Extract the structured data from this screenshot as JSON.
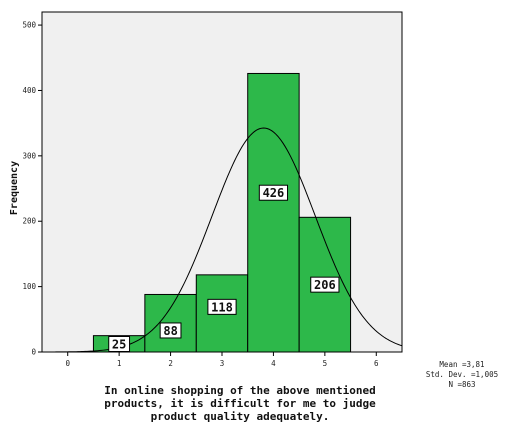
{
  "chart_data": {
    "type": "bar",
    "variant": "histogram",
    "categories": [
      "1",
      "2",
      "3",
      "4",
      "5"
    ],
    "values": [
      25,
      88,
      118,
      426,
      206
    ],
    "ylabel": "Frequency",
    "xlabel_lines": [
      "In online shopping of the above mentioned",
      "products, it is difficult for me to judge",
      "product quality adequately."
    ],
    "xlim": [
      -0.5,
      6.5
    ],
    "ylim": [
      0,
      520
    ],
    "x_ticks": [
      "0",
      "1",
      "2",
      "3",
      "4",
      "5",
      "6"
    ],
    "y_ticks": [
      "0",
      "100",
      "200",
      "300",
      "400",
      "500"
    ],
    "bar_labels": [
      "25",
      "88",
      "118",
      "426",
      "206"
    ],
    "normal_curve": {
      "mean": 3.81,
      "std": 1.005,
      "n": 863
    },
    "stats_lines": [
      "Mean =3,81",
      "Std. Dev. =1,005",
      "N =863"
    ],
    "grid": false,
    "colors": {
      "bar": "#2db84a",
      "plot_bg": "#f0f0f0",
      "curve": "#000000"
    }
  }
}
